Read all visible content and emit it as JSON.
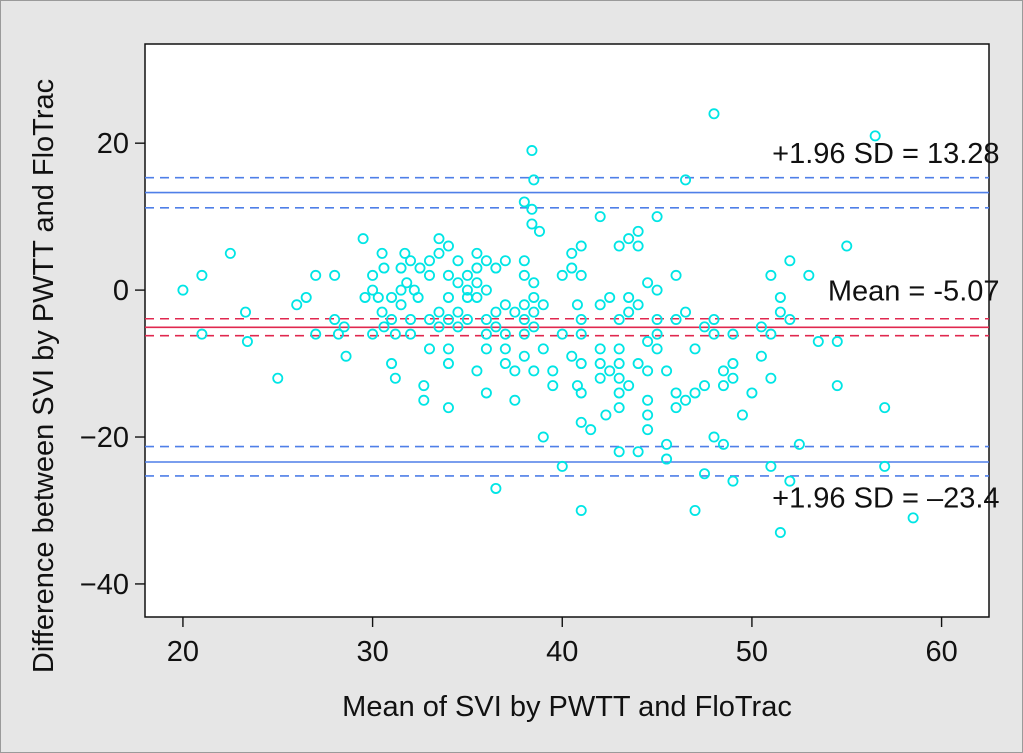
{
  "chart_data": {
    "type": "scatter",
    "title": "",
    "xlabel": "Mean of SVI by PWTT and FloTrac",
    "ylabel": "Difference between SVI by PWTT and  FloTrac",
    "xlim": [
      18,
      62.5
    ],
    "ylim": [
      -44.5,
      33.5
    ],
    "xticks": [
      20,
      30,
      40,
      50,
      60
    ],
    "yticks": [
      20,
      0,
      -20,
      -40
    ],
    "ytick_labels": [
      "20",
      "0",
      "−20",
      "−40"
    ],
    "grid": false,
    "lines": [
      {
        "value": 13.28,
        "style": "solid",
        "color": "#4f7fe8"
      },
      {
        "value": 15.3,
        "style": "dashed",
        "color": "#4f7fe8"
      },
      {
        "value": 11.2,
        "style": "dashed",
        "color": "#4f7fe8"
      },
      {
        "value": -5.07,
        "style": "solid",
        "color": "#e0284f"
      },
      {
        "value": -3.9,
        "style": "dashed",
        "color": "#e0284f"
      },
      {
        "value": -6.2,
        "style": "dashed",
        "color": "#e0284f"
      },
      {
        "value": -23.4,
        "style": "solid",
        "color": "#4f7fe8"
      },
      {
        "value": -21.3,
        "style": "dashed",
        "color": "#4f7fe8"
      },
      {
        "value": -25.3,
        "style": "dashed",
        "color": "#4f7fe8"
      }
    ],
    "annotations": [
      {
        "text": "+1.96 SD = 13.28",
        "x": 62,
        "y": 17.3
      },
      {
        "text": "Mean = -5.07",
        "x": 62,
        "y": -1.4
      },
      {
        "text": "+1.96 SD = –23.4",
        "x": 62,
        "y": -29.6
      }
    ],
    "point_color": "#00e5e5",
    "points": [
      [
        20,
        0
      ],
      [
        21,
        2
      ],
      [
        21,
        -6
      ],
      [
        22.5,
        5
      ],
      [
        23.3,
        -3
      ],
      [
        23.4,
        -7
      ],
      [
        25,
        -12
      ],
      [
        26,
        -2
      ],
      [
        26.5,
        -1
      ],
      [
        27,
        2
      ],
      [
        27,
        -6
      ],
      [
        28,
        2
      ],
      [
        28,
        -4
      ],
      [
        28.2,
        -6
      ],
      [
        28.5,
        -5
      ],
      [
        28.6,
        -9
      ],
      [
        29.5,
        7
      ],
      [
        29.6,
        -1
      ],
      [
        30,
        2
      ],
      [
        30,
        0
      ],
      [
        30,
        -6
      ],
      [
        30.3,
        -1
      ],
      [
        30.5,
        5
      ],
      [
        30.6,
        3
      ],
      [
        30.5,
        -3
      ],
      [
        30.6,
        -5
      ],
      [
        31,
        -1
      ],
      [
        31,
        -4
      ],
      [
        31,
        -10
      ],
      [
        31.2,
        -12
      ],
      [
        31.2,
        -6
      ],
      [
        31.5,
        0
      ],
      [
        31.5,
        -2
      ],
      [
        31.5,
        3
      ],
      [
        31.7,
        5
      ],
      [
        31.8,
        1
      ],
      [
        32,
        4
      ],
      [
        32,
        -6
      ],
      [
        32,
        -4
      ],
      [
        32.2,
        0
      ],
      [
        32.4,
        -1
      ],
      [
        32.5,
        3
      ],
      [
        32.7,
        -13
      ],
      [
        32.7,
        -15
      ],
      [
        33,
        2
      ],
      [
        33,
        4
      ],
      [
        33,
        -8
      ],
      [
        33,
        -4
      ],
      [
        33.5,
        7
      ],
      [
        33.5,
        5
      ],
      [
        33.5,
        -3
      ],
      [
        33.5,
        -5
      ],
      [
        34,
        6
      ],
      [
        34,
        2
      ],
      [
        34,
        -1
      ],
      [
        34,
        -4
      ],
      [
        34,
        -8
      ],
      [
        34,
        -10
      ],
      [
        34,
        -16
      ],
      [
        34.5,
        4
      ],
      [
        34.5,
        1
      ],
      [
        34.5,
        -3
      ],
      [
        34.5,
        -5
      ],
      [
        35,
        2
      ],
      [
        35,
        0
      ],
      [
        35,
        -1
      ],
      [
        35,
        -4
      ],
      [
        35.5,
        5
      ],
      [
        35.5,
        3
      ],
      [
        35.5,
        1
      ],
      [
        35.5,
        -1
      ],
      [
        35.5,
        -11
      ],
      [
        36,
        4
      ],
      [
        36,
        0
      ],
      [
        36,
        -4
      ],
      [
        36,
        -6
      ],
      [
        36,
        -8
      ],
      [
        36,
        -14
      ],
      [
        36.5,
        3
      ],
      [
        36.5,
        -3
      ],
      [
        36.5,
        -5
      ],
      [
        36.5,
        -27
      ],
      [
        37,
        4
      ],
      [
        37,
        -2
      ],
      [
        37,
        -6
      ],
      [
        37,
        -8
      ],
      [
        37,
        -10
      ],
      [
        37.5,
        -3
      ],
      [
        37.5,
        -11
      ],
      [
        37.5,
        -15
      ],
      [
        38,
        12
      ],
      [
        38,
        4
      ],
      [
        38,
        2
      ],
      [
        38,
        -2
      ],
      [
        38,
        -4
      ],
      [
        38,
        -6
      ],
      [
        38,
        -9
      ],
      [
        38.4,
        19
      ],
      [
        38.5,
        15
      ],
      [
        38.4,
        11
      ],
      [
        38.4,
        9
      ],
      [
        38.5,
        1
      ],
      [
        38.5,
        -1
      ],
      [
        38.5,
        -3
      ],
      [
        38.5,
        -5
      ],
      [
        38.5,
        -11
      ],
      [
        38.8,
        8
      ],
      [
        39,
        -2
      ],
      [
        39,
        -8
      ],
      [
        39,
        -20
      ],
      [
        39.5,
        -11
      ],
      [
        39.5,
        -13
      ],
      [
        40,
        2
      ],
      [
        40,
        -6
      ],
      [
        40,
        -24
      ],
      [
        40.5,
        5
      ],
      [
        40.5,
        3
      ],
      [
        40.5,
        -9
      ],
      [
        40.8,
        -2
      ],
      [
        40.8,
        -13
      ],
      [
        41,
        6
      ],
      [
        41,
        2
      ],
      [
        41,
        -4
      ],
      [
        41,
        -6
      ],
      [
        41,
        -10
      ],
      [
        41,
        -14
      ],
      [
        41,
        -18
      ],
      [
        41,
        -30
      ],
      [
        41.5,
        -19
      ],
      [
        42,
        10
      ],
      [
        42,
        -2
      ],
      [
        42,
        -8
      ],
      [
        42,
        -10
      ],
      [
        42,
        -12
      ],
      [
        42.3,
        -17
      ],
      [
        42.5,
        -1
      ],
      [
        42.5,
        -11
      ],
      [
        43,
        6
      ],
      [
        43,
        -4
      ],
      [
        43,
        -8
      ],
      [
        43,
        -10
      ],
      [
        43,
        -12
      ],
      [
        43,
        -14
      ],
      [
        43,
        -16
      ],
      [
        43,
        -22
      ],
      [
        43.5,
        7
      ],
      [
        43.5,
        -1
      ],
      [
        43.5,
        -3
      ],
      [
        43.5,
        -13
      ],
      [
        44,
        8
      ],
      [
        44,
        6
      ],
      [
        44,
        -2
      ],
      [
        44,
        -10
      ],
      [
        44,
        -22
      ],
      [
        44.5,
        1
      ],
      [
        44.5,
        -7
      ],
      [
        44.5,
        -11
      ],
      [
        44.5,
        -15
      ],
      [
        44.5,
        -17
      ],
      [
        44.5,
        -19
      ],
      [
        45,
        10
      ],
      [
        45,
        0
      ],
      [
        45,
        -4
      ],
      [
        45,
        -6
      ],
      [
        45,
        -8
      ],
      [
        45.5,
        -11
      ],
      [
        45.5,
        -21
      ],
      [
        45.5,
        -23
      ],
      [
        46,
        2
      ],
      [
        46,
        -4
      ],
      [
        46,
        -14
      ],
      [
        46,
        -16
      ],
      [
        46.5,
        15
      ],
      [
        46.5,
        -3
      ],
      [
        46.5,
        -15
      ],
      [
        47,
        -8
      ],
      [
        47,
        -14
      ],
      [
        47,
        -30
      ],
      [
        47.5,
        -5
      ],
      [
        47.5,
        -13
      ],
      [
        47.5,
        -25
      ],
      [
        48,
        24
      ],
      [
        48,
        -4
      ],
      [
        48,
        -6
      ],
      [
        48,
        -20
      ],
      [
        48.5,
        -11
      ],
      [
        48.5,
        -13
      ],
      [
        48.5,
        -21
      ],
      [
        49,
        -6
      ],
      [
        49,
        -10
      ],
      [
        49,
        -12
      ],
      [
        49,
        -26
      ],
      [
        49.5,
        -17
      ],
      [
        50,
        -14
      ],
      [
        50.5,
        -5
      ],
      [
        50.5,
        -9
      ],
      [
        51,
        2
      ],
      [
        51,
        -6
      ],
      [
        51,
        -12
      ],
      [
        51,
        -24
      ],
      [
        51.5,
        -1
      ],
      [
        51.5,
        -3
      ],
      [
        51.5,
        -33
      ],
      [
        52,
        4
      ],
      [
        52,
        -4
      ],
      [
        52,
        -26
      ],
      [
        52.5,
        -21
      ],
      [
        53,
        2
      ],
      [
        53.5,
        -7
      ],
      [
        54.5,
        -7
      ],
      [
        54.5,
        -13
      ],
      [
        55,
        6
      ],
      [
        56.5,
        21
      ],
      [
        57,
        -16
      ],
      [
        57,
        -24
      ],
      [
        58.5,
        -31
      ]
    ]
  }
}
